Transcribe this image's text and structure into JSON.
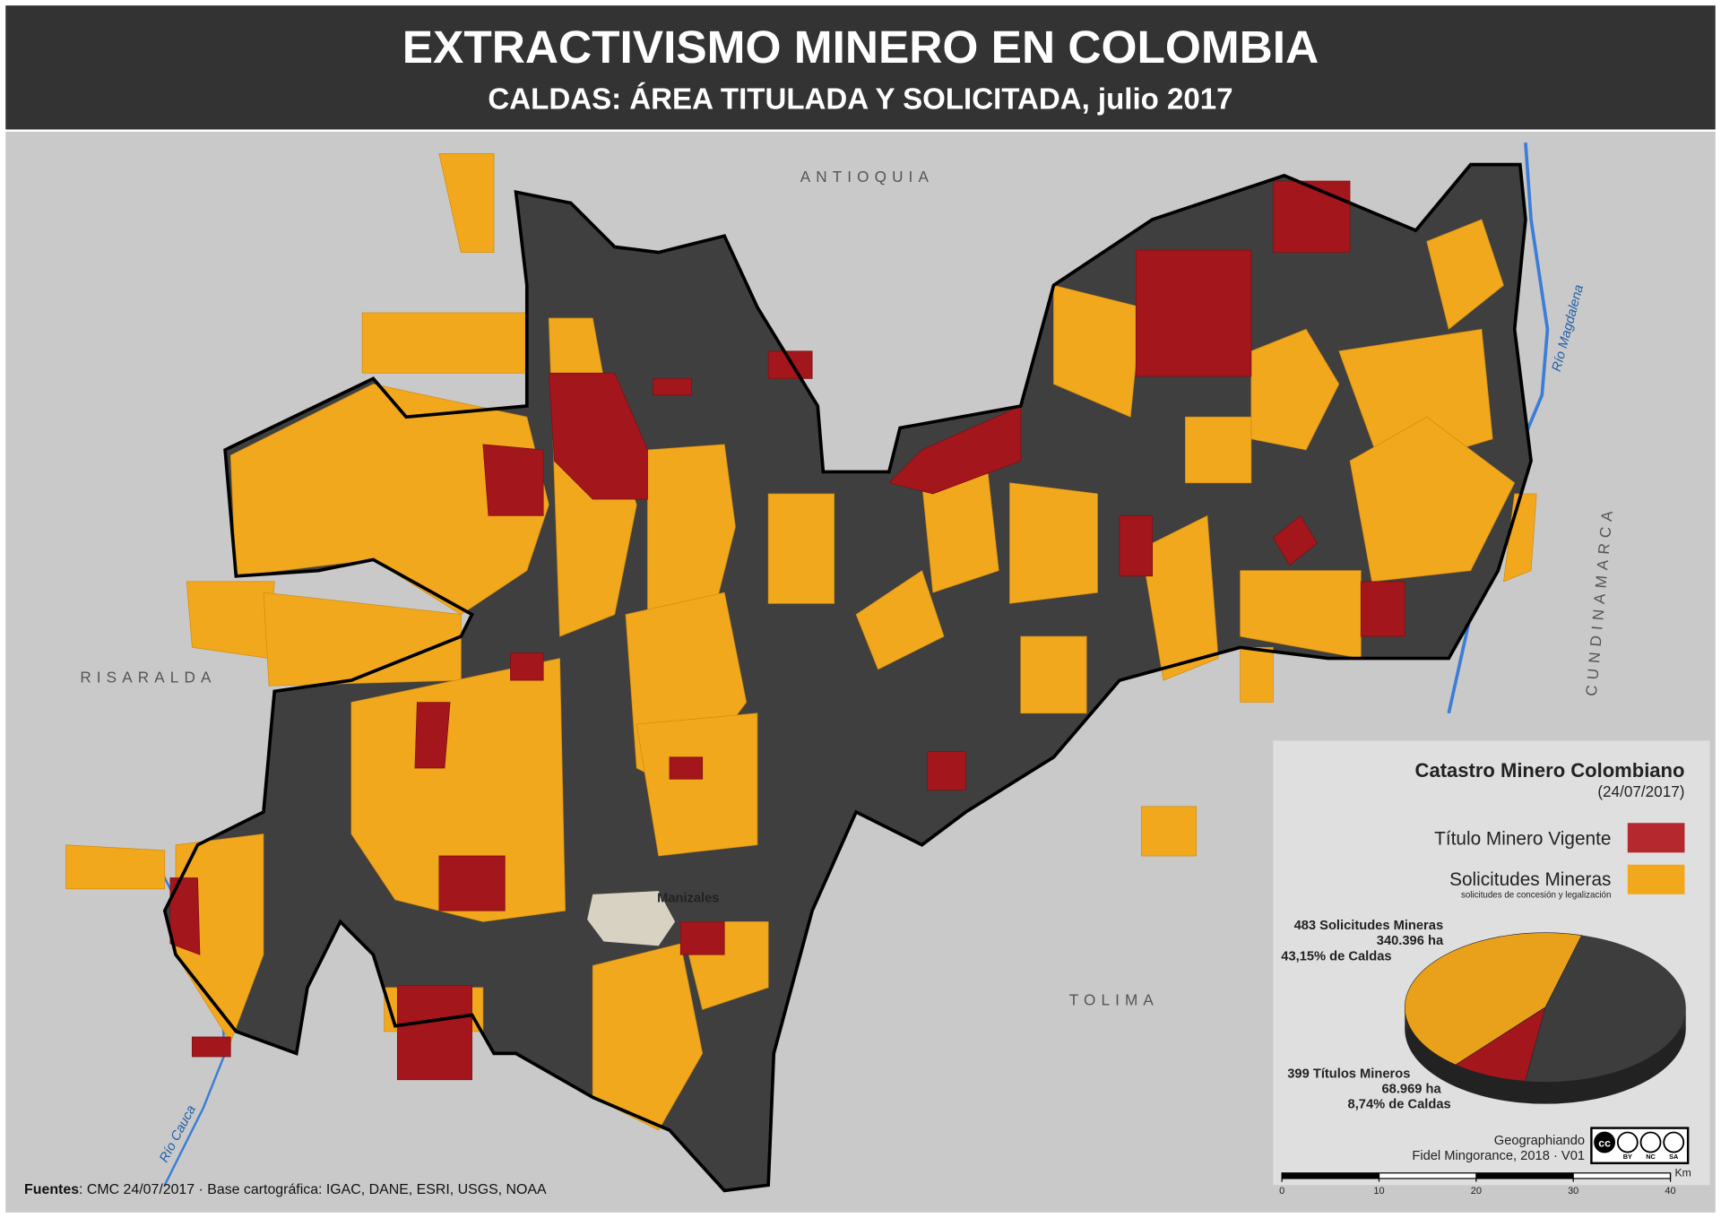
{
  "header": {
    "title": "EXTRACTIVISMO MINERO EN COLOMBIA",
    "subtitle": "CALDAS: ÁREA TITULADA Y SOLICITADA, julio 2017"
  },
  "places": {
    "north": "ANTIOQUIA",
    "west": "RISARALDA",
    "south": "TOLIMA",
    "east": "CUNDINAMARCA",
    "city": "Manizales",
    "river_east": "Río Magdalena",
    "river_west": "Río Cauca"
  },
  "legend": {
    "title": "Catastro Minero Colombiano",
    "date": "(24/07/2017)",
    "items": [
      {
        "label": "Título Minero Vigente",
        "color": "#b5282d"
      },
      {
        "label": "Solicitudes Mineras",
        "note": "solicitudes de concesión y legalización",
        "color": "#f2a81d"
      }
    ]
  },
  "pie": {
    "rest_color": "#3d3d3d",
    "slices": [
      {
        "lines": [
          "483 Solicitudes Mineras",
          "340.396 ha",
          "43,15% de Caldas"
        ],
        "value": 43.15,
        "color": "#e9a11c"
      },
      {
        "lines": [
          "399 Títulos Mineros",
          "68.969 ha",
          "8,74% de Caldas"
        ],
        "value": 8.74,
        "color": "#a3161b"
      }
    ]
  },
  "credits": {
    "author": "Geographiando",
    "line2": "Fidel Mingorance, 2018 · V01",
    "license": [
      "cc",
      "BY",
      "NC",
      "SA"
    ]
  },
  "scale": {
    "unit": "Km",
    "ticks": [
      0,
      10,
      20,
      30,
      40
    ]
  },
  "sources": {
    "label": "Fuentes",
    "text": ": CMC 24/07/2017 · Base cartográfica: IGAC, DANE, ESRI, USGS, NOAA"
  }
}
